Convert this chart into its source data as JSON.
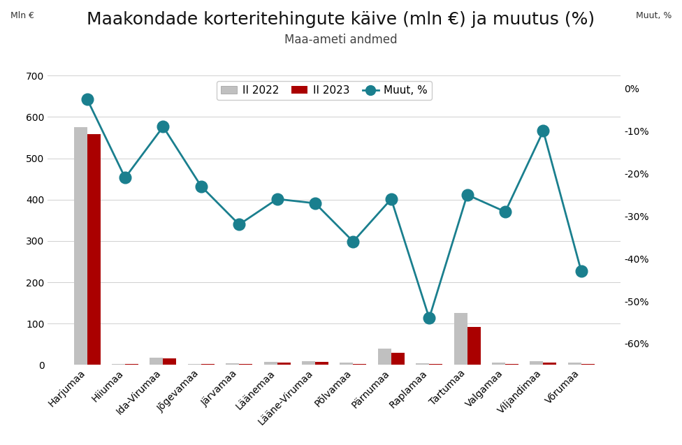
{
  "title": "Maakondade korteritehingute käive (mln €) ja muutus (%)",
  "subtitle": "Maa-ameti andmed",
  "ylabel_left": "Mln €",
  "ylabel_right": "Muut, %",
  "categories": [
    "Harjumaa",
    "Hiiumaa",
    "Ida-Virumaa",
    "Jõgevamaa",
    "Järvamaa",
    "Läänemaa",
    "Lääne-Virumaa",
    "Põlvamaa",
    "Pärnumaa",
    "Raplamaa",
    "Tartumaa",
    "Valgamaa",
    "Viljandimaa",
    "Võrumaa"
  ],
  "bar2022": [
    575,
    2.5,
    18,
    3.0,
    4.5,
    7.5,
    9.5,
    5.5,
    40,
    3.5,
    125,
    5.5,
    8.5,
    5.5
  ],
  "bar2023": [
    558,
    1.5,
    16,
    2.0,
    2.5,
    5.0,
    7.0,
    3.0,
    30,
    2.0,
    92,
    3.0,
    5.5,
    3.0
  ],
  "muut_pct": [
    -2.5,
    -21,
    -9,
    -23,
    -32,
    -26,
    -27,
    -36,
    -26,
    -54,
    -25,
    -29,
    -10,
    -43
  ],
  "bar_color_2022": "#c0c0c0",
  "bar_color_2023": "#aa0000",
  "line_color": "#1a7f8e",
  "ylim_left": [
    0,
    700
  ],
  "ylim_right": [
    -65,
    3
  ],
  "yticks_left": [
    0,
    100,
    200,
    300,
    400,
    500,
    600,
    700
  ],
  "yticks_right": [
    0,
    -10,
    -20,
    -30,
    -40,
    -50,
    -60
  ],
  "background_color": "#ffffff",
  "legend_labels": [
    "II 2022",
    "II 2023",
    "Muut, %"
  ],
  "title_fontsize": 18,
  "subtitle_fontsize": 12,
  "axis_label_fontsize": 9,
  "tick_fontsize": 10,
  "legend_fontsize": 11,
  "figsize": [
    9.76,
    6.37
  ],
  "dpi": 100
}
